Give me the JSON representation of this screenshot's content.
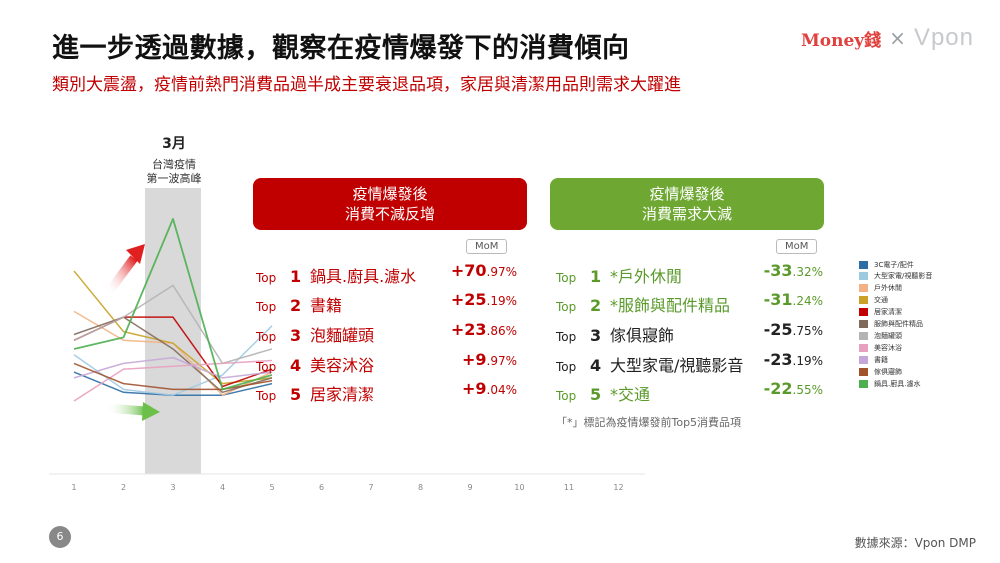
{
  "header": {
    "title": "進一步透過數據，觀察在疫情爆發下的消費傾向",
    "subtitle": "類別大震盪，疫情前熱門消費品過半成主要衰退品項，家居與清潔用品則需求大躍進",
    "logo_money": "Money錢",
    "logo_x": "×",
    "logo_vpon": "Vpon"
  },
  "annotation": {
    "month": "3月",
    "line1": "台灣疫情",
    "line2": "第一波高峰"
  },
  "left_card": {
    "line1": "疫情爆發後",
    "line2": "消費不減反增",
    "mom": "MoM",
    "items": [
      {
        "top": "Top",
        "rank": "1",
        "name": "鍋具.廚具.濾水",
        "val_main": "+70",
        "val_dec": ".97%"
      },
      {
        "top": "Top",
        "rank": "2",
        "name": "書籍",
        "val_main": "+25",
        "val_dec": ".19%"
      },
      {
        "top": "Top",
        "rank": "3",
        "name": "泡麵罐頭",
        "val_main": "+23",
        "val_dec": ".86%"
      },
      {
        "top": "Top",
        "rank": "4",
        "name": "美容沐浴",
        "val_main": "+9",
        "val_dec": ".97%"
      },
      {
        "top": "Top",
        "rank": "5",
        "name": "居家清潔",
        "val_main": "+9",
        "val_dec": ".04%"
      }
    ]
  },
  "right_card": {
    "line1": "疫情爆發後",
    "line2": "消費需求大減",
    "mom": "MoM",
    "items": [
      {
        "top": "Top",
        "rank": "1",
        "name": "*戶外休閒",
        "val_main": "-33",
        "val_dec": ".32%"
      },
      {
        "top": "Top",
        "rank": "2",
        "name": "*服飾與配件精品",
        "val_main": "-31",
        "val_dec": ".24%"
      },
      {
        "top": "Top",
        "rank": "3",
        "name": "傢俱寢飾",
        "val_main": "-25",
        "val_dec": ".75%"
      },
      {
        "top": "Top",
        "rank": "4",
        "name": "大型家電/視聽影音",
        "val_main": "-23",
        "val_dec": ".19%"
      },
      {
        "top": "Top",
        "rank": "5",
        "name": "*交通",
        "val_main": "-22",
        "val_dec": ".55%"
      }
    ],
    "footnote": "「*」標記為疫情爆發前Top5消費品項"
  },
  "colors": {
    "red": "#c00000",
    "green": "#6ea832",
    "highlight_band": "#d9d9d9"
  },
  "page_number": "6",
  "source": "數據來源：Vpon DMP",
  "chart_data": {
    "type": "line",
    "x": [
      1,
      2,
      3,
      4,
      5,
      6,
      7,
      8,
      9,
      10,
      11,
      12
    ],
    "x_tick_labels": [
      "1",
      "2",
      "3",
      "4",
      "5",
      "6",
      "7",
      "8",
      "9",
      "10",
      "11",
      "12"
    ],
    "highlight_x": 3,
    "ylim": [
      0,
      100
    ],
    "grid": false,
    "legend_position": "right",
    "series": [
      {
        "name": "3C電子/配件",
        "color": "#2e6da4",
        "values": [
          37,
          30,
          29,
          29,
          33,
          null,
          null,
          null,
          null,
          null,
          null,
          null
        ]
      },
      {
        "name": "大型家電/視聽影音",
        "color": "#9ecae1",
        "values": [
          43,
          31,
          29,
          36,
          53,
          null,
          null,
          null,
          null,
          null,
          null,
          null
        ]
      },
      {
        "name": "戶外休閒",
        "color": "#f4b183",
        "values": [
          58,
          48,
          47,
          29,
          37,
          null,
          null,
          null,
          null,
          null,
          null,
          null
        ]
      },
      {
        "name": "交通",
        "color": "#c9a227",
        "values": [
          72,
          51,
          47,
          33,
          35,
          null,
          null,
          null,
          null,
          null,
          null,
          null
        ]
      },
      {
        "name": "居家清潔",
        "color": "#c00000",
        "values": [
          48,
          56,
          56,
          32,
          38,
          null,
          null,
          null,
          null,
          null,
          null,
          null
        ]
      },
      {
        "name": "服飾與配件精品",
        "color": "#7f6a5c",
        "values": [
          50,
          56,
          45,
          30,
          35,
          null,
          null,
          null,
          null,
          null,
          null,
          null
        ]
      },
      {
        "name": "泡麵罐頭",
        "color": "#b3b3b3",
        "values": [
          48,
          56,
          67,
          40,
          45,
          null,
          null,
          null,
          null,
          null,
          null,
          null
        ]
      },
      {
        "name": "美容沐浴",
        "color": "#e8a0bf",
        "values": [
          27,
          38,
          39,
          40,
          41,
          null,
          null,
          null,
          null,
          null,
          null,
          null
        ]
      },
      {
        "name": "書籍",
        "color": "#c4a7d6",
        "values": [
          35,
          40,
          42,
          35,
          37,
          null,
          null,
          null,
          null,
          null,
          null,
          null
        ]
      },
      {
        "name": "傢俱寢飾",
        "color": "#a0522d",
        "values": [
          40,
          33,
          31,
          31,
          34,
          null,
          null,
          null,
          null,
          null,
          null,
          null
        ]
      },
      {
        "name": "鍋具.廚具.濾水",
        "color": "#4caf50",
        "values": [
          45,
          49,
          90,
          31,
          36,
          null,
          null,
          null,
          null,
          null,
          null,
          null
        ]
      }
    ]
  }
}
